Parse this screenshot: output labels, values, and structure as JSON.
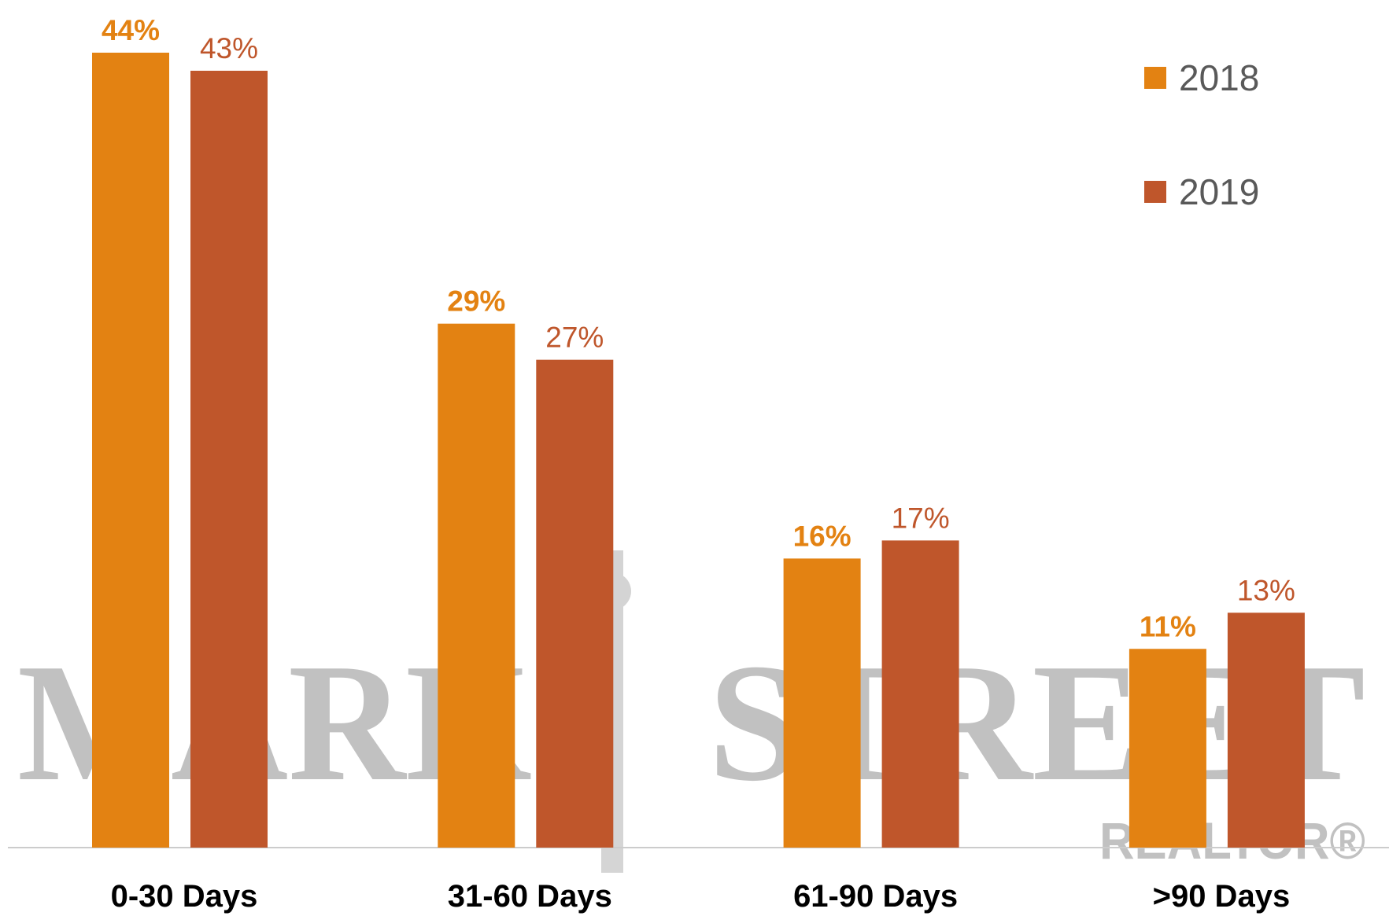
{
  "chart_data": {
    "type": "bar",
    "categories": [
      "0-30 Days",
      "31-60 Days",
      "61-90 Days",
      ">90 Days"
    ],
    "series": [
      {
        "name": "2018",
        "color": "#e38212",
        "values": [
          44,
          29,
          16,
          11
        ],
        "value_labels": [
          "44%",
          "29%",
          "16%",
          "11%"
        ]
      },
      {
        "name": "2019",
        "color": "#bf562b",
        "values": [
          43,
          27,
          17,
          13
        ],
        "value_labels": [
          "43%",
          "27%",
          "17%",
          "13%"
        ]
      }
    ],
    "legend": "top-right",
    "watermark": [
      "MARK",
      "STREET"
    ],
    "watermark_sub": "REALTOR®"
  }
}
